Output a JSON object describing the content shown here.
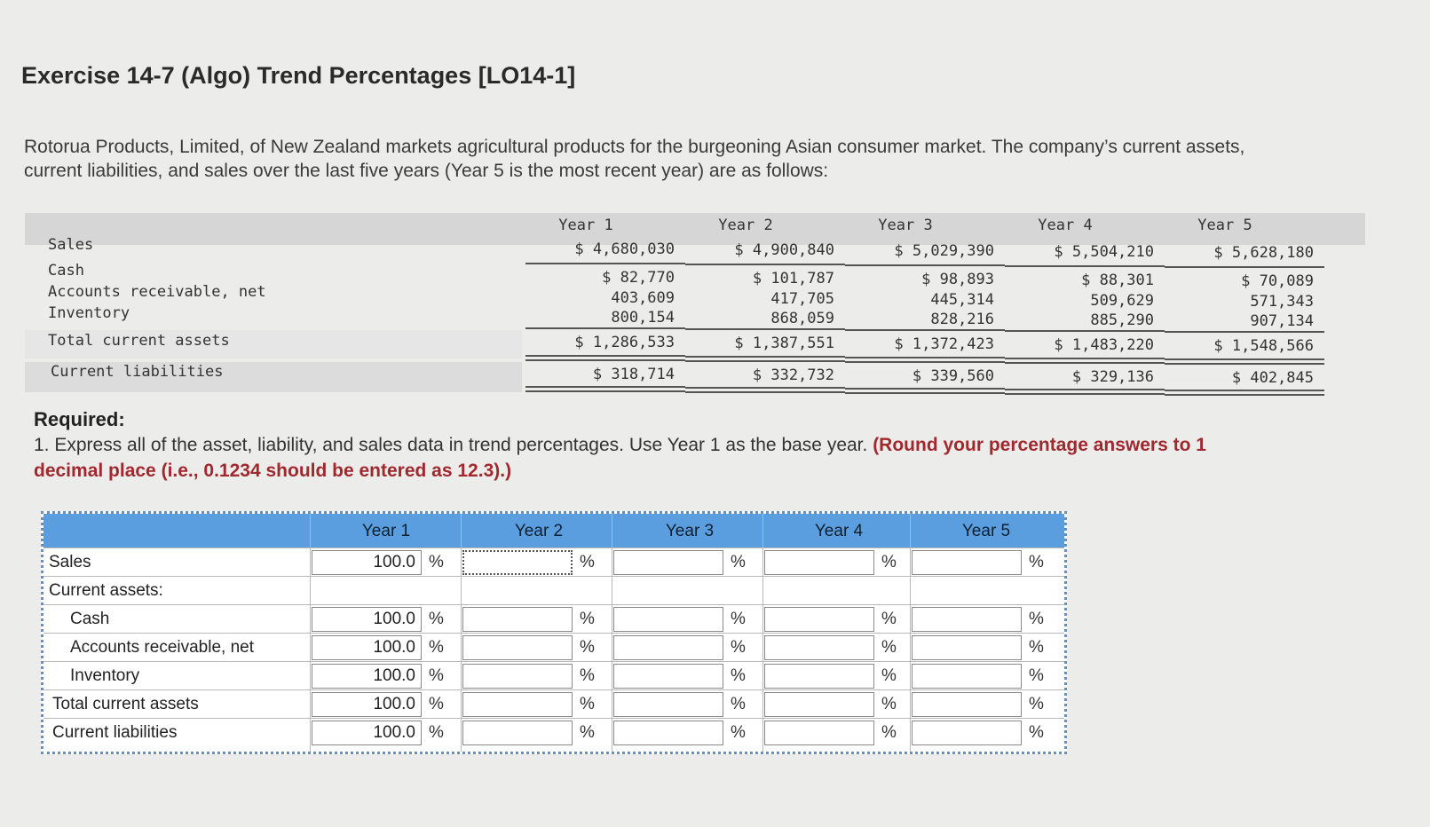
{
  "title": "Exercise 14-7 (Algo) Trend Percentages [LO14-1]",
  "intro": "Rotorua Products, Limited, of New Zealand markets agricultural products for the burgeoning Asian consumer market. The company’s current assets, current liabilities, and sales over the last five years (Year 5 is the most recent year) are as follows:",
  "data_table": {
    "row_labels": [
      "Sales",
      "Cash",
      "Accounts receivable, net",
      "Inventory",
      "Total current assets",
      "Current liabilities"
    ],
    "columns": [
      {
        "year": "Year 1",
        "sales": "$ 4,680,030",
        "cash": "$ 82,770",
        "ar": "403,609",
        "inventory": "800,154",
        "tca": "$ 1,286,533",
        "cl": "$ 318,714"
      },
      {
        "year": "Year 2",
        "sales": "$ 4,900,840",
        "cash": "$ 101,787",
        "ar": "417,705",
        "inventory": "868,059",
        "tca": "$ 1,387,551",
        "cl": "$ 332,732"
      },
      {
        "year": "Year 3",
        "sales": "$ 5,029,390",
        "cash": "$ 98,893",
        "ar": "445,314",
        "inventory": "828,216",
        "tca": "$ 1,372,423",
        "cl": "$ 339,560"
      },
      {
        "year": "Year 4",
        "sales": "$ 5,504,210",
        "cash": "$ 88,301",
        "ar": "509,629",
        "inventory": "885,290",
        "tca": "$ 1,483,220",
        "cl": "$ 329,136"
      },
      {
        "year": "Year 5",
        "sales": "$ 5,628,180",
        "cash": "$ 70,089",
        "ar": "571,343",
        "inventory": "907,134",
        "tca": "$ 1,548,566",
        "cl": "$ 402,845"
      }
    ]
  },
  "required": {
    "heading": "Required:",
    "text": "1. Express all of the asset, liability, and sales data in trend percentages. Use Year 1 as the base year.",
    "bold_note": "(Round your percentage answers to 1 decimal place (i.e., 0.1234 should be entered as 12.3).)"
  },
  "answer_grid": {
    "headers": [
      "Year 1",
      "Year 2",
      "Year 3",
      "Year 4",
      "Year 5"
    ],
    "rows": [
      {
        "label": "Sales",
        "year1": "100.0"
      },
      {
        "label": "Current assets:",
        "year1": ""
      },
      {
        "label": "Cash",
        "year1": "100.0"
      },
      {
        "label": "Accounts receivable, net",
        "year1": "100.0"
      },
      {
        "label": "Inventory",
        "year1": "100.0"
      },
      {
        "label": "Total current assets",
        "year1": "100.0"
      },
      {
        "label": "Current liabilities",
        "year1": "100.0"
      }
    ],
    "pct_symbol": "%"
  }
}
